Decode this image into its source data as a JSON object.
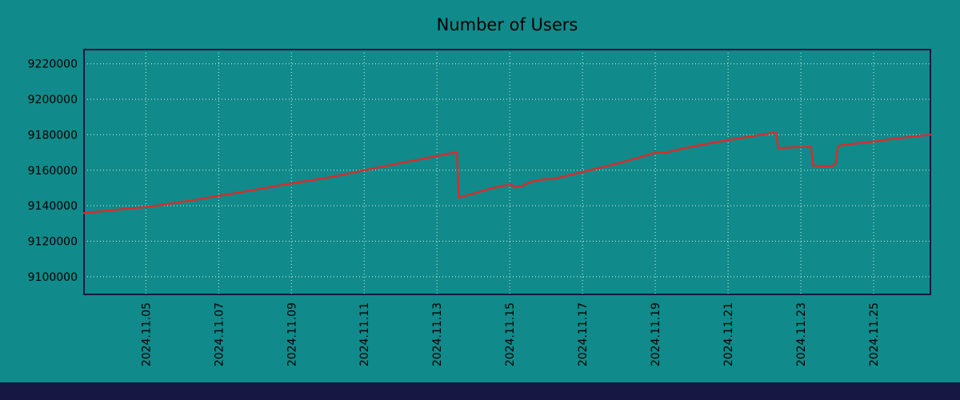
{
  "page": {
    "title": "Number of Users"
  },
  "colors": {
    "background": "#108a8a",
    "plot_background": "#108a8a",
    "line": "#d62e2e",
    "grid": "#d9efe9",
    "border": "#171744",
    "footer_bar": "#171744",
    "text": "#000000"
  },
  "footer": {
    "label": ""
  },
  "chart_data": {
    "type": "line",
    "title": "Number of Users",
    "xlabel": "",
    "ylabel": "",
    "legend": "none",
    "grid": "dotted",
    "x_unit": "date (November 2024, day of month)",
    "xlim": [
      3.3,
      26.56
    ],
    "ylim": [
      9090000,
      9228000
    ],
    "yticks": [
      9100000,
      9120000,
      9140000,
      9160000,
      9180000,
      9200000,
      9220000
    ],
    "xticks": [
      {
        "x": 5,
        "label": "2024.11.05"
      },
      {
        "x": 7,
        "label": "2024.11.07"
      },
      {
        "x": 9,
        "label": "2024.11.09"
      },
      {
        "x": 11,
        "label": "2024.11.11"
      },
      {
        "x": 13,
        "label": "2024.11.13"
      },
      {
        "x": 15,
        "label": "2024.11.15"
      },
      {
        "x": 17,
        "label": "2024.11.17"
      },
      {
        "x": 19,
        "label": "2024.11.19"
      },
      {
        "x": 21,
        "label": "2024.11.21"
      },
      {
        "x": 23,
        "label": "2024.11.23"
      },
      {
        "x": 25,
        "label": "2024.11.25"
      }
    ],
    "series": [
      {
        "name": "Number of Users",
        "points": [
          [
            3.3,
            9135800
          ],
          [
            4.0,
            9137300
          ],
          [
            4.5,
            9138300
          ],
          [
            5.0,
            9139300
          ],
          [
            5.3,
            9140000
          ],
          [
            6.0,
            9142200
          ],
          [
            6.5,
            9143800
          ],
          [
            7.0,
            9145500
          ],
          [
            7.5,
            9147200
          ],
          [
            8.0,
            9149000
          ],
          [
            8.5,
            9150800
          ],
          [
            9.0,
            9152500
          ],
          [
            9.5,
            9154200
          ],
          [
            10.0,
            9155800
          ],
          [
            10.5,
            9157800
          ],
          [
            11.0,
            9160000
          ],
          [
            11.5,
            9162000
          ],
          [
            12.0,
            9164000
          ],
          [
            12.5,
            9166000
          ],
          [
            13.0,
            9168000
          ],
          [
            13.45,
            9169800
          ],
          [
            13.55,
            9170000
          ],
          [
            13.6,
            9144500
          ],
          [
            14.0,
            9146800
          ],
          [
            14.5,
            9149800
          ],
          [
            14.9,
            9151500
          ],
          [
            15.05,
            9151700
          ],
          [
            15.15,
            9150400
          ],
          [
            15.35,
            9151200
          ],
          [
            15.6,
            9153600
          ],
          [
            15.9,
            9154700
          ],
          [
            16.2,
            9155100
          ],
          [
            16.6,
            9157000
          ],
          [
            17.0,
            9159000
          ],
          [
            17.5,
            9161500
          ],
          [
            18.0,
            9164000
          ],
          [
            18.5,
            9166800
          ],
          [
            18.95,
            9169600
          ],
          [
            19.1,
            9170200
          ],
          [
            19.25,
            9169700
          ],
          [
            19.5,
            9171000
          ],
          [
            20.0,
            9173200
          ],
          [
            20.5,
            9175200
          ],
          [
            21.0,
            9177000
          ],
          [
            21.5,
            9178600
          ],
          [
            22.0,
            9180300
          ],
          [
            22.25,
            9181200
          ],
          [
            22.32,
            9181300
          ],
          [
            22.38,
            9172400
          ],
          [
            22.7,
            9172800
          ],
          [
            23.0,
            9173100
          ],
          [
            23.28,
            9173200
          ],
          [
            23.34,
            9162600
          ],
          [
            23.6,
            9162200
          ],
          [
            23.88,
            9162400
          ],
          [
            23.96,
            9164000
          ],
          [
            24.02,
            9173500
          ],
          [
            24.15,
            9174200
          ],
          [
            24.5,
            9175000
          ],
          [
            25.0,
            9176200
          ],
          [
            25.5,
            9177600
          ],
          [
            26.0,
            9178800
          ],
          [
            26.56,
            9180000
          ]
        ]
      }
    ]
  }
}
